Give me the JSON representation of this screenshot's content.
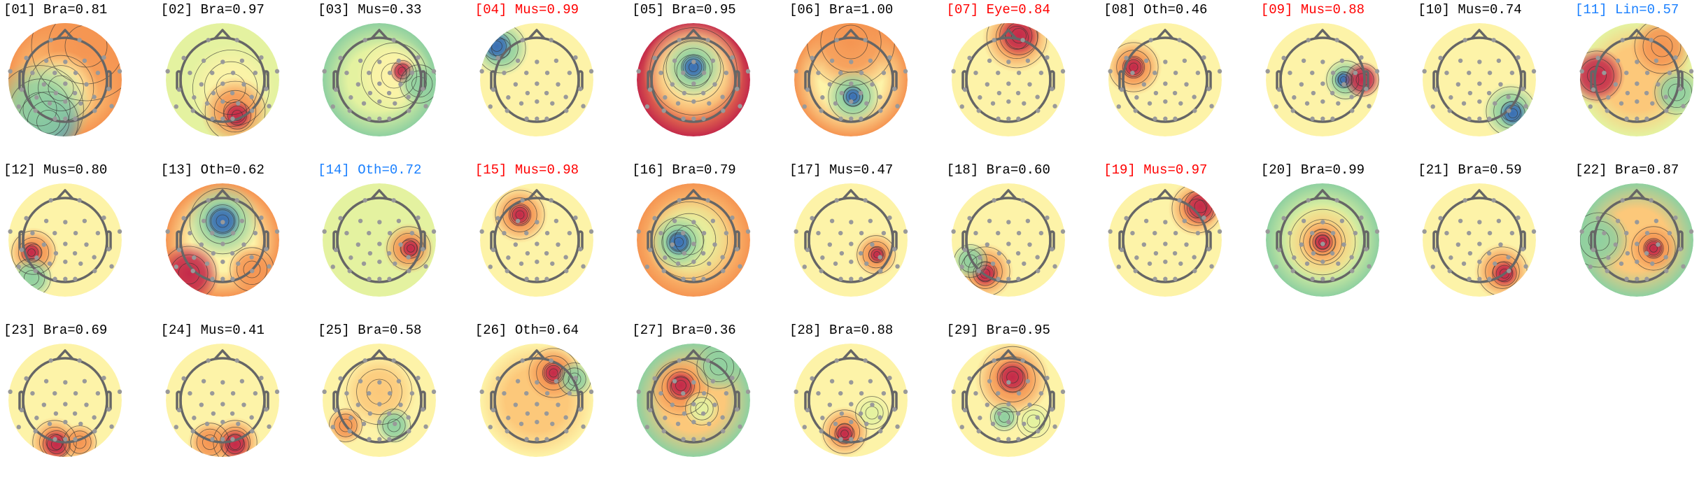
{
  "colors": {
    "normal": "#000000",
    "flagged": "#ff0000",
    "other_flag": "#1a80ff"
  },
  "chart_data": {
    "type": "topomap-grid",
    "title": "",
    "components": [
      {
        "id": "01",
        "label": "Bra",
        "score": "0.81",
        "flag": "normal"
      },
      {
        "id": "02",
        "label": "Bra",
        "score": "0.97",
        "flag": "normal"
      },
      {
        "id": "03",
        "label": "Mus",
        "score": "0.33",
        "flag": "normal"
      },
      {
        "id": "04",
        "label": "Mus",
        "score": "0.99",
        "flag": "flagged"
      },
      {
        "id": "05",
        "label": "Bra",
        "score": "0.95",
        "flag": "normal"
      },
      {
        "id": "06",
        "label": "Bra",
        "score": "1.00",
        "flag": "normal"
      },
      {
        "id": "07",
        "label": "Eye",
        "score": "0.84",
        "flag": "flagged"
      },
      {
        "id": "08",
        "label": "Oth",
        "score": "0.46",
        "flag": "normal"
      },
      {
        "id": "09",
        "label": "Mus",
        "score": "0.88",
        "flag": "flagged"
      },
      {
        "id": "10",
        "label": "Mus",
        "score": "0.74",
        "flag": "normal"
      },
      {
        "id": "11",
        "label": "Lin",
        "score": "0.57",
        "flag": "other_flag"
      },
      {
        "id": "12",
        "label": "Mus",
        "score": "0.80",
        "flag": "normal"
      },
      {
        "id": "13",
        "label": "Oth",
        "score": "0.62",
        "flag": "normal"
      },
      {
        "id": "14",
        "label": "Oth",
        "score": "0.72",
        "flag": "other_flag"
      },
      {
        "id": "15",
        "label": "Mus",
        "score": "0.98",
        "flag": "flagged"
      },
      {
        "id": "16",
        "label": "Bra",
        "score": "0.79",
        "flag": "normal"
      },
      {
        "id": "17",
        "label": "Mus",
        "score": "0.47",
        "flag": "normal"
      },
      {
        "id": "18",
        "label": "Bra",
        "score": "0.60",
        "flag": "normal"
      },
      {
        "id": "19",
        "label": "Mus",
        "score": "0.97",
        "flag": "flagged"
      },
      {
        "id": "20",
        "label": "Bra",
        "score": "0.99",
        "flag": "normal"
      },
      {
        "id": "21",
        "label": "Bra",
        "score": "0.59",
        "flag": "normal"
      },
      {
        "id": "22",
        "label": "Bra",
        "score": "0.87",
        "flag": "normal"
      },
      {
        "id": "23",
        "label": "Bra",
        "score": "0.69",
        "flag": "normal"
      },
      {
        "id": "24",
        "label": "Mus",
        "score": "0.41",
        "flag": "normal"
      },
      {
        "id": "25",
        "label": "Bra",
        "score": "0.58",
        "flag": "normal"
      },
      {
        "id": "26",
        "label": "Oth",
        "score": "0.64",
        "flag": "normal"
      },
      {
        "id": "27",
        "label": "Bra",
        "score": "0.36",
        "flag": "normal"
      },
      {
        "id": "28",
        "label": "Bra",
        "score": "0.88",
        "flag": "normal"
      },
      {
        "id": "29",
        "label": "Bra",
        "score": "0.95",
        "flag": "normal"
      }
    ]
  }
}
